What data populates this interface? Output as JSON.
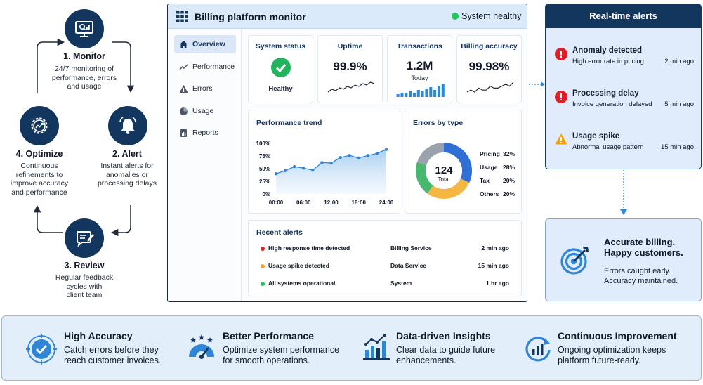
{
  "cycle": {
    "steps": [
      {
        "title": "1. Monitor",
        "desc": [
          "24/7 monitoring of",
          "performance, errors",
          "and usage"
        ]
      },
      {
        "title": "2. Alert",
        "desc": [
          "Instant alerts for",
          "anomalies or",
          "processing delays"
        ]
      },
      {
        "title": "3. Review",
        "desc": [
          "Regular feedback",
          "cycles with",
          "client team"
        ]
      },
      {
        "title": "4. Optimize",
        "desc": [
          "Continuous",
          "refinements to",
          "improve accuracy",
          "and performance"
        ]
      }
    ]
  },
  "dashboard": {
    "title": "Billing platform monitor",
    "status": "System healthy",
    "nav": [
      "Overview",
      "Performance",
      "Errors",
      "Usage",
      "Reports"
    ],
    "kpis": {
      "system_status": {
        "label": "System status",
        "value": "Healthy"
      },
      "uptime": {
        "label": "Uptime",
        "value": "99.9%"
      },
      "transactions": {
        "label": "Transactions",
        "value": "1.2M",
        "sub": "Today"
      },
      "billing_accuracy": {
        "label": "Billing accuracy",
        "value": "99.98%"
      }
    },
    "performance_trend": {
      "title": "Performance trend"
    },
    "errors_by_type": {
      "title": "Errors by type",
      "total": "124",
      "total_label": "Total"
    },
    "recent_alerts": {
      "title": "Recent alerts",
      "rows": [
        {
          "message": "High response time detected",
          "service": "Billing Service",
          "time": "2 min ago",
          "color": "#e11d27"
        },
        {
          "message": "Usage spike detected",
          "service": "Data Service",
          "time": "15 min ago",
          "color": "#f5a524"
        },
        {
          "message": "All systems operational",
          "service": "System",
          "time": "1 hr ago",
          "color": "#22c55e"
        }
      ]
    }
  },
  "chart_data": [
    {
      "type": "area",
      "title": "Performance trend",
      "x": [
        0,
        1,
        2,
        3,
        4,
        5,
        6,
        7,
        8,
        9,
        10,
        11,
        12
      ],
      "x_ticks": [
        "00:00",
        "06:00",
        "12:00",
        "18:00",
        "24:00"
      ],
      "y_ticks": [
        "0%",
        "25%",
        "50%",
        "75%",
        "100%"
      ],
      "ylim": [
        0,
        100
      ],
      "values": [
        40,
        46,
        54,
        51,
        47,
        62,
        61,
        72,
        76,
        71,
        76,
        80,
        88
      ],
      "color": "#2f86d6"
    },
    {
      "type": "pie",
      "title": "Errors by type",
      "categories": [
        "Pricing",
        "Usage",
        "Tax",
        "Others"
      ],
      "values": [
        32,
        28,
        20,
        20
      ],
      "labels": [
        "32%",
        "28%",
        "20%",
        "20%"
      ],
      "colors": [
        "#2f6fd6",
        "#f5b642",
        "#48b86e",
        "#9aa3ad"
      ]
    },
    {
      "type": "line",
      "title": "Uptime",
      "values": [
        3,
        5,
        4,
        6,
        5,
        7,
        6,
        8,
        7,
        9,
        8,
        10,
        9
      ],
      "color": "#1f2937"
    },
    {
      "type": "bar",
      "title": "Transactions",
      "values": [
        2,
        3,
        3,
        4,
        3,
        5,
        4,
        6,
        7,
        5,
        8,
        9
      ],
      "color": "#2f86d6"
    },
    {
      "type": "line",
      "title": "Billing accuracy",
      "values": [
        5,
        6,
        5,
        7,
        6,
        6,
        8,
        7,
        7,
        8,
        9,
        8,
        10
      ],
      "color": "#1f2937"
    }
  ],
  "realtime_alerts": {
    "title": "Real-time alerts",
    "items": [
      {
        "title": "Anomaly detected",
        "desc": "High error rate in pricing",
        "time": "2 min ago",
        "icon": "error-icon"
      },
      {
        "title": "Processing delay",
        "desc": "Invoice generation delayed",
        "time": "5 min ago",
        "icon": "error-icon"
      },
      {
        "title": "Usage spike",
        "desc": "Abnormal usage pattern",
        "time": "15 min ago",
        "icon": "warning-icon"
      }
    ]
  },
  "outcome": {
    "title": [
      "Accurate billing.",
      "Happy customers."
    ],
    "desc": [
      "Errors caught early.",
      "Accuracy maintained."
    ]
  },
  "features": [
    {
      "title": "High Accuracy",
      "desc": [
        "Catch errors before they",
        "reach customer invoices."
      ]
    },
    {
      "title": "Better Performance",
      "desc": [
        "Optimize system performance",
        "for smooth operations."
      ]
    },
    {
      "title": "Data-driven Insights",
      "desc": [
        "Clear data to guide future",
        "enhancements."
      ]
    },
    {
      "title": "Continuous Improvement",
      "desc": [
        "Ongoing optimization keeps",
        "platform future-ready."
      ]
    }
  ]
}
